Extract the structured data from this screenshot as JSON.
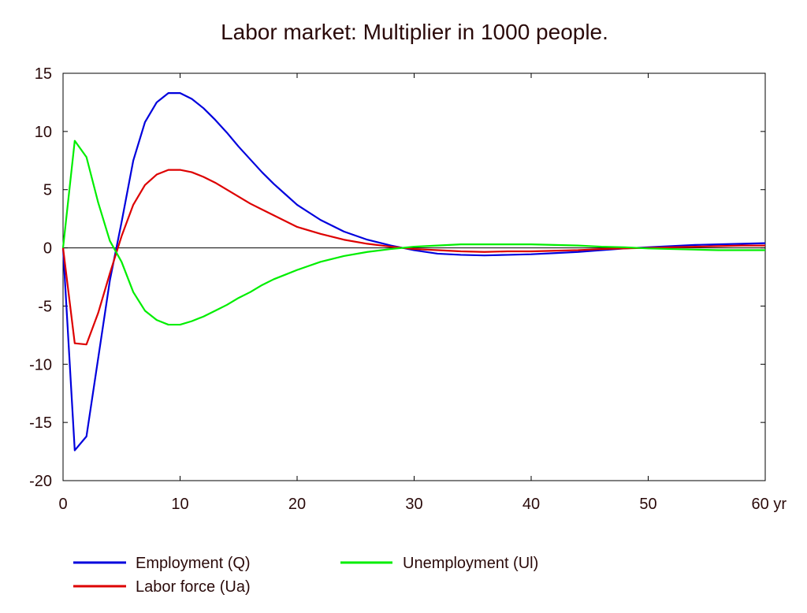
{
  "chart_data": {
    "type": "line",
    "title": "Labor market: Multiplier in 1000 people.",
    "xlabel": "",
    "ylabel": "",
    "xlim": [
      0,
      60
    ],
    "ylim": [
      -20,
      15
    ],
    "x_ticks": [
      0,
      10,
      20,
      30,
      40,
      50,
      60
    ],
    "x_tick_labels": [
      "0",
      "10",
      "20",
      "30",
      "40",
      "50",
      "60 yr"
    ],
    "y_ticks": [
      15,
      10,
      5,
      0,
      -5,
      -10,
      -15,
      -20
    ],
    "y_tick_labels": [
      "15",
      "10",
      "5",
      "0",
      "-5",
      "-10",
      "-15",
      "-20"
    ],
    "zero_line": true,
    "x": [
      0,
      1,
      2,
      3,
      4,
      5,
      6,
      7,
      8,
      9,
      10,
      11,
      12,
      13,
      14,
      15,
      16,
      17,
      18,
      19,
      20,
      22,
      24,
      26,
      28,
      30,
      32,
      34,
      36,
      38,
      40,
      42,
      44,
      46,
      48,
      50,
      52,
      54,
      56,
      58,
      60
    ],
    "series": [
      {
        "name": "Employment (Q)",
        "color": "#0000dd",
        "values": [
          0,
          -17.4,
          -16.2,
          -9.5,
          -2.8,
          2.2,
          7.5,
          10.8,
          12.5,
          13.3,
          13.3,
          12.8,
          12.0,
          11.0,
          9.9,
          8.7,
          7.6,
          6.5,
          5.5,
          4.6,
          3.7,
          2.4,
          1.4,
          0.7,
          0.2,
          -0.2,
          -0.5,
          -0.6,
          -0.65,
          -0.6,
          -0.55,
          -0.45,
          -0.35,
          -0.2,
          -0.05,
          0.05,
          0.15,
          0.25,
          0.3,
          0.35,
          0.4
        ]
      },
      {
        "name": "Labor force (Ua)",
        "color": "#dd0000",
        "values": [
          0,
          -8.2,
          -8.3,
          -5.6,
          -2.2,
          1.0,
          3.7,
          5.4,
          6.3,
          6.7,
          6.7,
          6.5,
          6.1,
          5.6,
          5.0,
          4.4,
          3.8,
          3.3,
          2.8,
          2.3,
          1.8,
          1.2,
          0.7,
          0.35,
          0.1,
          -0.1,
          -0.2,
          -0.3,
          -0.35,
          -0.3,
          -0.3,
          -0.25,
          -0.2,
          -0.1,
          -0.05,
          0.0,
          0.05,
          0.1,
          0.15,
          0.2,
          0.2
        ]
      },
      {
        "name": "Unemployment (Ul)",
        "color": "#00ee00",
        "values": [
          0,
          9.2,
          7.8,
          3.9,
          0.6,
          -1.2,
          -3.8,
          -5.4,
          -6.2,
          -6.6,
          -6.6,
          -6.3,
          -5.9,
          -5.4,
          -4.9,
          -4.3,
          -3.8,
          -3.2,
          -2.7,
          -2.3,
          -1.9,
          -1.2,
          -0.7,
          -0.35,
          -0.1,
          0.1,
          0.2,
          0.3,
          0.3,
          0.3,
          0.3,
          0.25,
          0.2,
          0.1,
          0.05,
          -0.05,
          -0.1,
          -0.15,
          -0.2,
          -0.2,
          -0.2
        ]
      }
    ],
    "legend": [
      {
        "label": "Employment (Q)",
        "color": "#0000dd"
      },
      {
        "label": "Unemployment (Ul)",
        "color": "#00ee00"
      },
      {
        "label": "Labor force (Ua)",
        "color": "#dd0000"
      }
    ]
  }
}
